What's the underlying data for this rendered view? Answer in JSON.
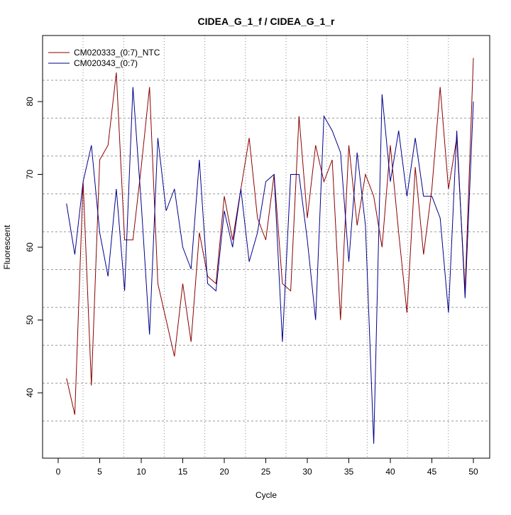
{
  "chart_data": {
    "type": "line",
    "title": "CIDEA_G_1_f / CIDEA_G_1_r",
    "xlabel": "Cycle",
    "ylabel": "Fluorescent",
    "xlim": [
      -1.9,
      52.3
    ],
    "ylim": [
      31,
      89
    ],
    "xticks": [
      0,
      5,
      10,
      15,
      20,
      25,
      30,
      35,
      40,
      45,
      50
    ],
    "yticks": [
      40,
      50,
      60,
      70,
      80
    ],
    "grid": true,
    "legend_position": "top-left",
    "x": [
      1,
      2,
      3,
      4,
      5,
      6,
      7,
      8,
      9,
      10,
      11,
      12,
      13,
      14,
      15,
      16,
      17,
      18,
      19,
      20,
      21,
      22,
      23,
      24,
      25,
      26,
      27,
      28,
      29,
      30,
      31,
      32,
      33,
      34,
      35,
      36,
      37,
      38,
      39,
      40,
      41,
      42,
      43,
      44,
      45,
      46,
      47,
      48,
      49,
      50
    ],
    "series": [
      {
        "name": "CM020333_(0:7)_NTC",
        "color": "#8b0000",
        "values": [
          42,
          37,
          69,
          41,
          72,
          74,
          84,
          61,
          61,
          71,
          82,
          55,
          50,
          45,
          55,
          47,
          62,
          56,
          55,
          67,
          61,
          68,
          75,
          64,
          61,
          70,
          55,
          54,
          78,
          64,
          74,
          69,
          72,
          50,
          74,
          63,
          70,
          67,
          60,
          74,
          62,
          51,
          71,
          59,
          68,
          82,
          68,
          75,
          54,
          86
        ]
      },
      {
        "name": "CM020343_(0:7)",
        "color": "#00008b",
        "values": [
          66,
          59,
          69,
          74,
          62,
          56,
          68,
          54,
          82,
          66,
          48,
          75,
          65,
          68,
          60,
          57,
          72,
          55,
          54,
          65,
          60,
          68,
          58,
          62,
          69,
          70,
          47,
          70,
          70,
          61,
          50,
          78,
          76,
          73,
          58,
          73,
          63,
          33,
          81,
          69,
          76,
          67,
          75,
          67,
          67,
          64,
          51,
          76,
          53,
          80
        ]
      }
    ]
  }
}
